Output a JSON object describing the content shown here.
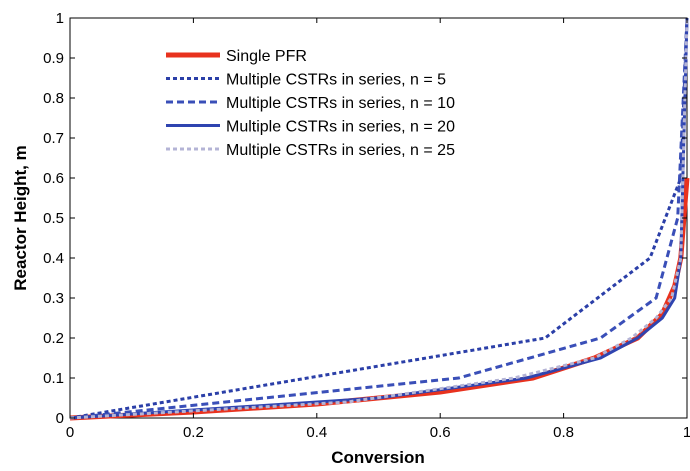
{
  "chart_data": {
    "type": "line",
    "title": "",
    "xlabel": "Conversion",
    "ylabel": "Reactor Height, m",
    "xlim": [
      0,
      1
    ],
    "ylim": [
      0,
      1
    ],
    "xticks": [
      "0",
      "0.2",
      "0.4",
      "0.6",
      "0.8",
      "1"
    ],
    "yticks": [
      "0",
      "0.1",
      "0.2",
      "0.3",
      "0.4",
      "0.5",
      "0.6",
      "0.7",
      "0.8",
      "0.9",
      "1"
    ],
    "grid": false,
    "legend_position": "top-left",
    "series": [
      {
        "name": "Single PFR",
        "color": "#e8321e",
        "style": "solid",
        "x": [
          0,
          0.2,
          0.4,
          0.6,
          0.75,
          0.85,
          0.92,
          0.96,
          0.98,
          0.99,
          0.995,
          1.0
        ],
        "y": [
          0,
          0.015,
          0.035,
          0.065,
          0.1,
          0.15,
          0.2,
          0.26,
          0.33,
          0.4,
          0.5,
          0.6
        ]
      },
      {
        "name": "Multiple CSTRs in series, n = 5",
        "color": "#2b3fa8",
        "style": "dotted",
        "x": [
          0,
          0.77,
          0.94,
          0.99,
          1.0
        ],
        "y": [
          0,
          0.2,
          0.4,
          0.6,
          1.0
        ]
      },
      {
        "name": "Multiple CSTRs in series, n = 10",
        "color": "#3a4fb8",
        "style": "dashed",
        "x": [
          0,
          0.63,
          0.86,
          0.95,
          0.985,
          1.0
        ],
        "y": [
          0,
          0.1,
          0.2,
          0.3,
          0.5,
          1.0
        ]
      },
      {
        "name": "Multiple CSTRs in series, n = 20",
        "color": "#2f44b0",
        "style": "solid",
        "x": [
          0,
          0.5,
          0.74,
          0.86,
          0.92,
          0.96,
          0.98,
          0.99,
          1.0
        ],
        "y": [
          0,
          0.05,
          0.1,
          0.15,
          0.2,
          0.25,
          0.3,
          0.4,
          1.0
        ]
      },
      {
        "name": "Multiple CSTRs in series, n = 25",
        "color": "#b4b4d6",
        "style": "dotted",
        "x": [
          0,
          0.45,
          0.72,
          0.85,
          0.91,
          0.95,
          0.975,
          0.99,
          1.0
        ],
        "y": [
          0,
          0.04,
          0.1,
          0.15,
          0.2,
          0.25,
          0.3,
          0.4,
          1.0
        ]
      }
    ]
  }
}
